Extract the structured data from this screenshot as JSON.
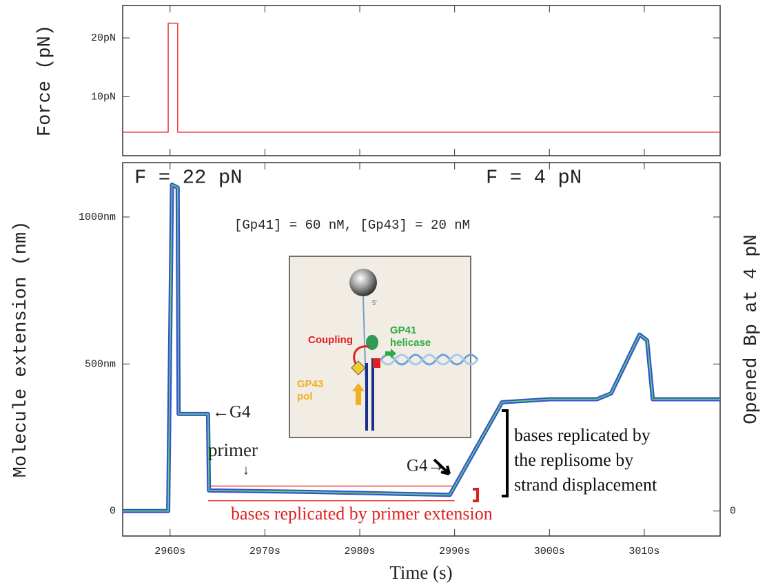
{
  "chart_data": [
    {
      "type": "line",
      "y_label": "Force (pN)",
      "x": [
        2955,
        2959.8,
        2959.8,
        2960.8,
        2960.8,
        3018
      ],
      "series": [
        {
          "color": "#f04040",
          "values": [
            4,
            4,
            22.5,
            22.5,
            4,
            4
          ]
        }
      ],
      "xlim": [
        2955,
        3018
      ],
      "ylim": [
        0,
        25.5
      ],
      "yticks": [
        {
          "value": 10,
          "label": "10pN"
        },
        {
          "value": 20,
          "label": "20pN"
        }
      ]
    },
    {
      "type": "line",
      "x_label": "Time (s)",
      "y_label": "Molecule extension (nm)",
      "y2_label": "Opened Bp at 4 pN",
      "x": [
        2955,
        2959.8,
        2960.2,
        2960.8,
        2960.9,
        2964,
        2964.1,
        2975,
        2985,
        2989.5,
        2995,
        3000,
        3005,
        3006.5,
        3009.5,
        3010.3,
        3010.9,
        3018
      ],
      "series": [
        {
          "color": "#3a4fd8",
          "values": [
            0,
            0,
            1110,
            1100,
            330,
            330,
            70,
            65,
            58,
            55,
            370,
            380,
            380,
            400,
            600,
            580,
            380,
            380
          ]
        },
        {
          "color": "#5ce05c",
          "values": [
            0,
            0,
            1110,
            1100,
            330,
            330,
            70,
            65,
            58,
            55,
            370,
            380,
            380,
            400,
            600,
            580,
            380,
            380
          ]
        }
      ],
      "xlim": [
        2955,
        3018
      ],
      "ylim": [
        -85,
        1185
      ],
      "y2lim": [
        -85,
        1185
      ],
      "xticks": [
        {
          "value": 2960,
          "label": "2960s"
        },
        {
          "value": 2970,
          "label": "2970s"
        },
        {
          "value": 2980,
          "label": "2980s"
        },
        {
          "value": 2990,
          "label": "2990s"
        },
        {
          "value": 3000,
          "label": "3000s"
        },
        {
          "value": 3010,
          "label": "3010s"
        }
      ],
      "yticks": [
        0,
        {
          "value": 500,
          "label": "500nm"
        },
        {
          "value": 1000,
          "label": "1000nm"
        }
      ],
      "y2ticks": [
        0
      ],
      "hlines": [
        {
          "y": 85,
          "x": [
            2964,
            2990
          ],
          "color": "#f04040"
        },
        {
          "y": 35,
          "x": [
            2964,
            2990
          ],
          "color": "#f04040"
        }
      ],
      "annotations": [
        "F = 22 pN",
        "F = 4 pN",
        "[Gp41] = 60 nM, [Gp43] = 20 nM",
        "←G4",
        "primer",
        "↓",
        "G4→",
        "bases replicated by primer extension"
      ],
      "annotation_lines": [
        "bases replicated by",
        "the replisome by",
        "strand displacement"
      ],
      "inset_labels": {
        "coupling": "Coupling",
        "helicase": [
          "GP41",
          "helicase"
        ],
        "pol": [
          "GP43",
          "pol"
        ],
        "end": "5'"
      }
    }
  ]
}
